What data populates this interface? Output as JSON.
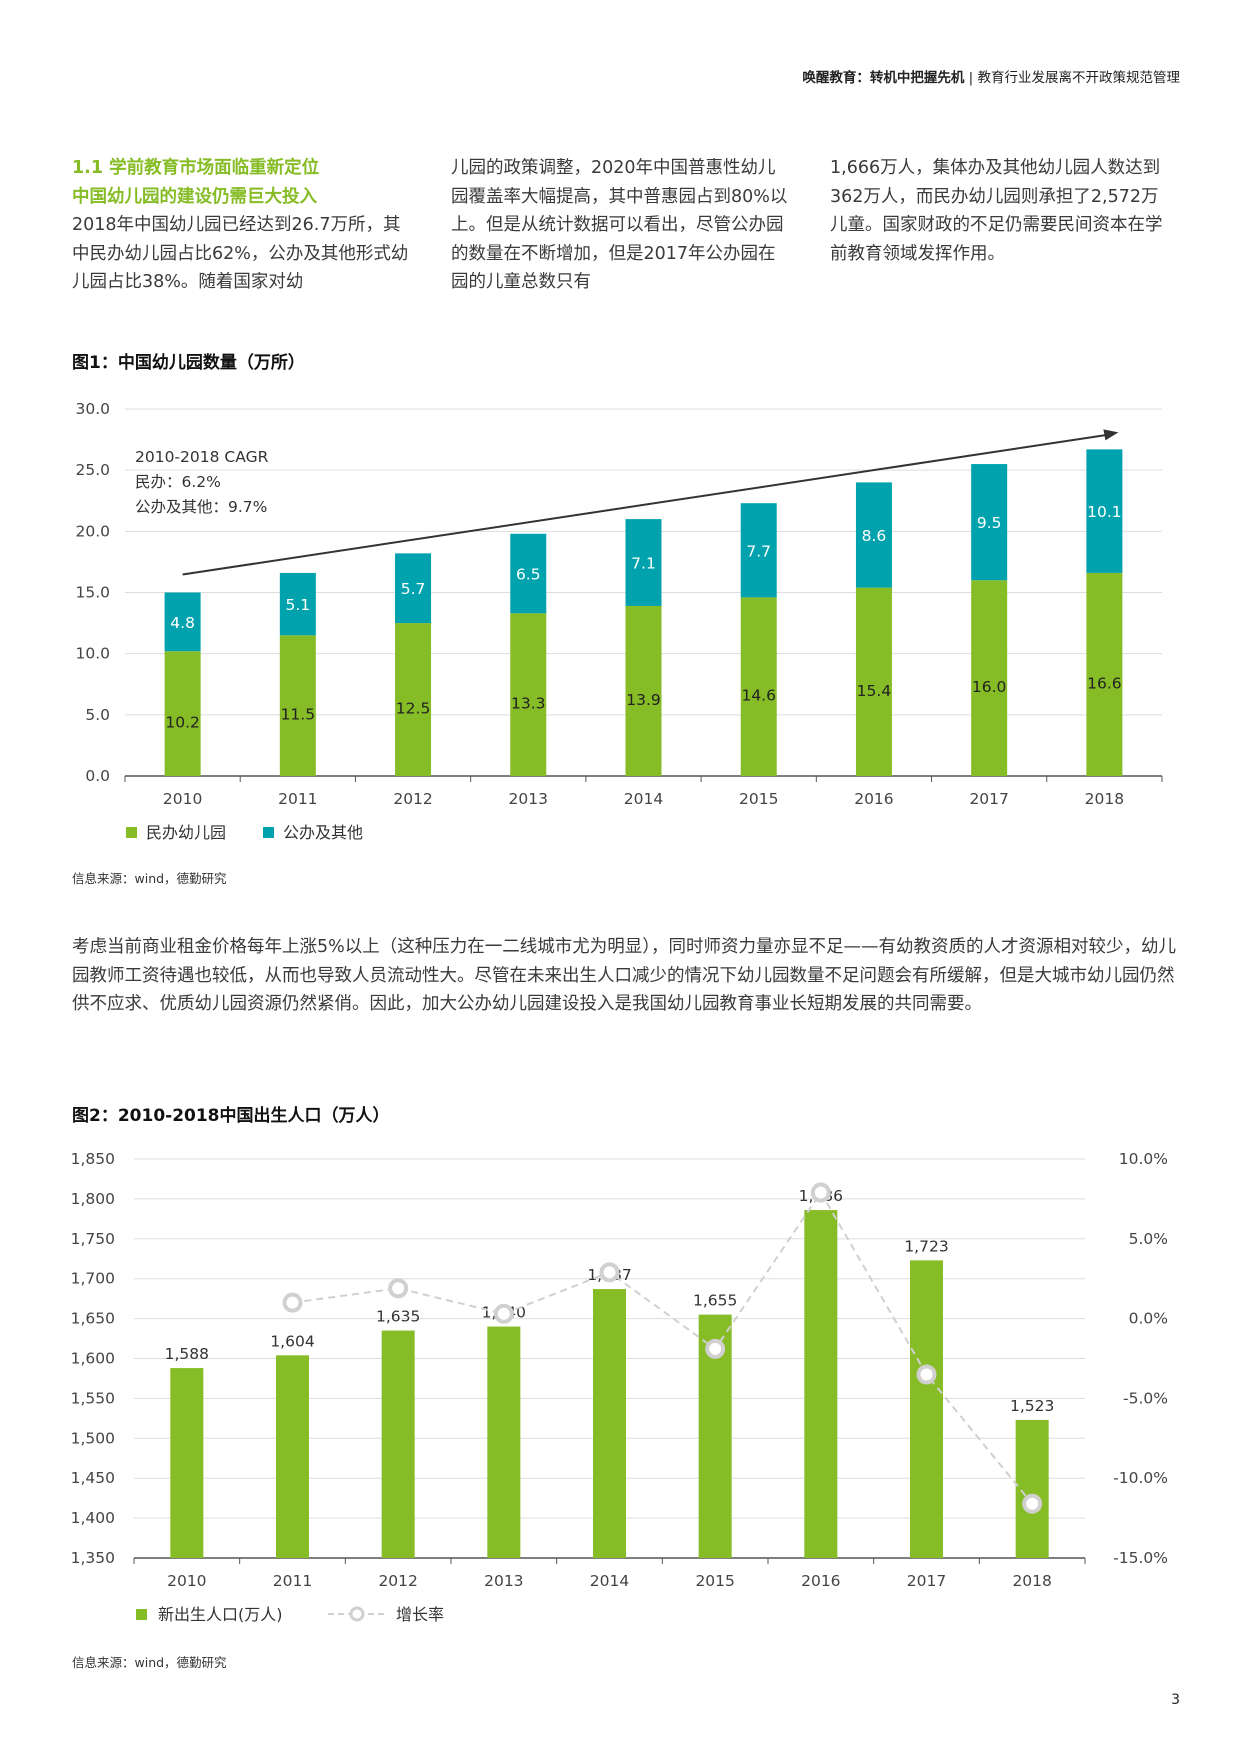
{
  "header": {
    "title_bold": "唤醒教育：转机中把握先机",
    "separator": "|",
    "title_rest": "教育行业发展离不开政策规范管理"
  },
  "intro": {
    "section_title": "1.1 学前教育市场面临重新定位",
    "section_subtitle": "中国幼儿园的建设仍需巨大投入",
    "col1_text": "2018年中国幼儿园已经达到26.7万所，其中民办幼儿园占比62%，公办及其他形式幼儿园占比38%。随着国家对幼",
    "col2_text": "儿园的政策调整，2020年中国普惠性幼儿园覆盖率大幅提高，其中普惠园占到80%以上。但是从统计数据可以看出，尽管公办园的数量在不断增加，但是2017年公办园在园的儿童总数只有",
    "col3_text": "1,666万人，集体办及其他幼儿园人数达到362万人，而民办幼儿园则承担了2,572万儿童。国家财政的不足仍需要民间资本在学前教育领域发挥作用。"
  },
  "figure1": {
    "title": "图1：中国幼儿园数量（万所）",
    "source": "信息来源：wind，德勤研究"
  },
  "figure2": {
    "title": "图2：2010-2018中国出生人口（万人）",
    "source": "信息来源：wind，德勤研究"
  },
  "paragraph": "考虑当前商业租金价格每年上涨5%以上（这种压力在一二线城市尤为明显），同时师资力量亦显不足——有幼教资质的人才资源相对较少，幼儿园教师工资待遇也较低，从而也导致人员流动性大。尽管在未来出生人口减少的情况下幼儿园数量不足问题会有所缓解，但是大城市幼儿园仍然供不应求、优质幼儿园资源仍然紧俏。因此，加大公办幼儿园建设投入是我国幼儿园教育事业长短期发展的共同需要。",
  "page_number": "3",
  "colors": {
    "green": "#86bc25",
    "teal": "#00a3ad",
    "grid": "#dddddd",
    "line": "#d0d0d0"
  },
  "chart_data": [
    {
      "type": "bar",
      "stacked": true,
      "categories": [
        "2010",
        "2011",
        "2012",
        "2013",
        "2014",
        "2015",
        "2016",
        "2017",
        "2018"
      ],
      "series": [
        {
          "name": "民办幼儿园",
          "values": [
            10.2,
            11.5,
            12.5,
            13.3,
            13.9,
            14.6,
            15.4,
            16.0,
            16.6
          ]
        },
        {
          "name": "公办及其他",
          "values": [
            4.8,
            5.1,
            5.7,
            6.5,
            7.1,
            7.7,
            8.6,
            9.5,
            10.1
          ]
        }
      ],
      "ylim": [
        0,
        30
      ],
      "yticks": [
        "0.0",
        "5.0",
        "10.0",
        "15.0",
        "20.0",
        "25.0",
        "30.0"
      ],
      "annotation": {
        "line1": "2010-2018 CAGR",
        "line2": "民办：6.2%",
        "line3": "公办及其他：9.7%"
      },
      "legend": [
        "民办幼儿园",
        "公办及其他"
      ]
    },
    {
      "type": "bar",
      "categories": [
        "2010",
        "2011",
        "2012",
        "2013",
        "2014",
        "2015",
        "2016",
        "2017",
        "2018"
      ],
      "series": [
        {
          "name": "新出生人口(万人)",
          "values": [
            1588,
            1604,
            1635,
            1640,
            1687,
            1655,
            1786,
            1723,
            1523
          ]
        },
        {
          "name": "增长率",
          "type": "line",
          "axis": "right",
          "values": [
            null,
            1.0,
            1.9,
            0.3,
            2.9,
            -1.9,
            7.9,
            -3.5,
            -11.6
          ]
        }
      ],
      "value_labels": [
        "1,588",
        "1,604",
        "1,635",
        "1,640",
        "1,687",
        "1,655",
        "1,786",
        "1,723",
        "1,523"
      ],
      "ylim": [
        1350,
        1850
      ],
      "yticks": [
        "1,350",
        "1,400",
        "1,450",
        "1,500",
        "1,550",
        "1,600",
        "1,650",
        "1,700",
        "1,750",
        "1,800",
        "1,850"
      ],
      "y2lim": [
        -15,
        10
      ],
      "y2ticks": [
        "-15.0%",
        "-10.0%",
        "-5.0%",
        "0.0%",
        "5.0%",
        "10.0%"
      ],
      "legend": [
        "新出生人口(万人)",
        "增长率"
      ]
    }
  ]
}
